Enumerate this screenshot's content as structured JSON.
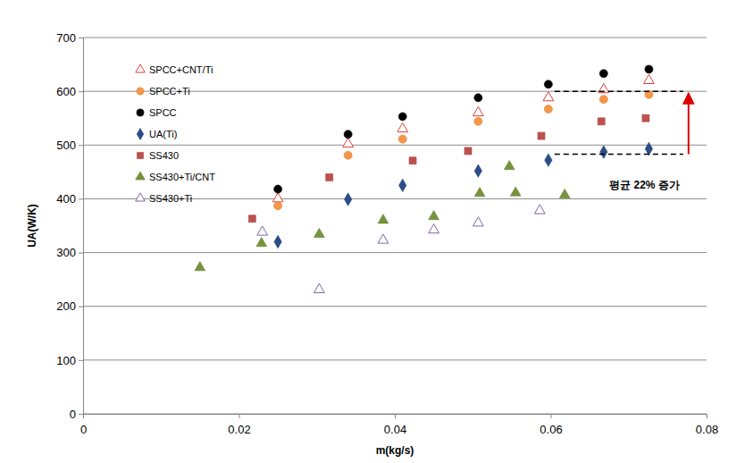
{
  "chart_data": {
    "type": "scatter",
    "x_label": "m(kg/s)",
    "y_label": "UA(W/K)",
    "xlim": [
      0,
      0.08
    ],
    "xticks": [
      0,
      0.02,
      0.04,
      0.06,
      0.08
    ],
    "ylim": [
      0,
      700
    ],
    "yticks": [
      0,
      100,
      200,
      300,
      400,
      500,
      600,
      700
    ],
    "grid": "y",
    "legend": "upper left",
    "series": [
      {
        "name": "SPCC+CNT/Ti",
        "color": "#e0403c",
        "marker": "triangle-open",
        "x": [
          0.025,
          0.034,
          0.041,
          0.0507,
          0.0597,
          0.0668,
          0.0726
        ],
        "values": [
          400,
          502,
          530,
          560,
          588,
          603,
          620
        ]
      },
      {
        "name": "SPCC+Ti",
        "color": "#f79646",
        "marker": "circle",
        "x": [
          0.025,
          0.034,
          0.041,
          0.0507,
          0.0597,
          0.0668,
          0.0726
        ],
        "values": [
          387,
          481,
          511,
          544,
          567,
          585,
          594
        ]
      },
      {
        "name": "SPCC",
        "color": "#000000",
        "marker": "circle",
        "x": [
          0.025,
          0.034,
          0.041,
          0.0507,
          0.0597,
          0.0668,
          0.0726
        ],
        "values": [
          418,
          520,
          553,
          588,
          613,
          633,
          641
        ]
      },
      {
        "name": "UA(Ti)",
        "color": "#2a4d8a",
        "marker": "diamond",
        "x": [
          0.025,
          0.034,
          0.041,
          0.0507,
          0.0597,
          0.0668,
          0.0726
        ],
        "values": [
          320,
          399,
          425,
          452,
          472,
          487,
          493
        ]
      },
      {
        "name": "SS430",
        "color": "#c0504d",
        "marker": "square",
        "x": [
          0.0217,
          0.0316,
          0.0423,
          0.0494,
          0.0588,
          0.0665,
          0.0722
        ],
        "values": [
          363,
          440,
          471,
          489,
          517,
          544,
          550
        ]
      },
      {
        "name": "SS430+Ti/CNT",
        "color": "#77933c",
        "marker": "triangle",
        "x": [
          0.015,
          0.0229,
          0.0303,
          0.0385,
          0.045,
          0.0509,
          0.0547,
          0.0555,
          0.0618
        ],
        "values": [
          272,
          317,
          334,
          360,
          367,
          410,
          460,
          411,
          407
        ]
      },
      {
        "name": "SS430+Ti",
        "color": "#8064a2",
        "marker": "triangle-open",
        "x": [
          0.023,
          0.0303,
          0.0385,
          0.045,
          0.0507,
          0.0586
        ],
        "values": [
          338,
          231,
          323,
          342,
          355,
          378
        ]
      }
    ],
    "annotations": [
      {
        "text": "평균 22% 증가",
        "x": [
          0.0605,
          0.077
        ],
        "y": [
          483,
          600
        ],
        "color": "#e00000"
      }
    ]
  }
}
